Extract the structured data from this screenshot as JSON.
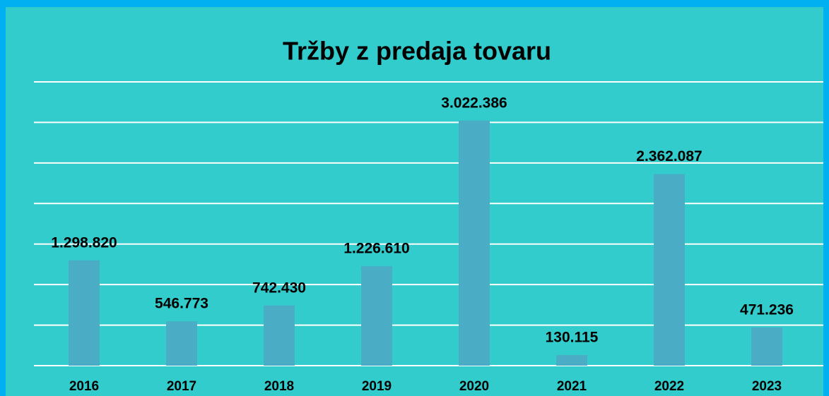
{
  "chart_data": {
    "type": "bar",
    "title": "Tržby z predaja tovaru",
    "categories": [
      "2016",
      "2017",
      "2018",
      "2019",
      "2020",
      "2021",
      "2022",
      "2023"
    ],
    "values": [
      1298820,
      546773,
      742430,
      1226610,
      3022386,
      130115,
      2362087,
      471236
    ],
    "value_labels": [
      "1.298.820",
      "546.773",
      "742.430",
      "1.226.610",
      "3.022.386",
      "130.115",
      "2.362.087",
      "471.236"
    ],
    "color": "#4bacc6",
    "ylim": [
      0,
      3500000
    ],
    "yticks": [
      0,
      500000,
      1000000,
      1500000,
      2000000,
      2500000,
      3000000,
      3500000
    ],
    "grid": true
  }
}
